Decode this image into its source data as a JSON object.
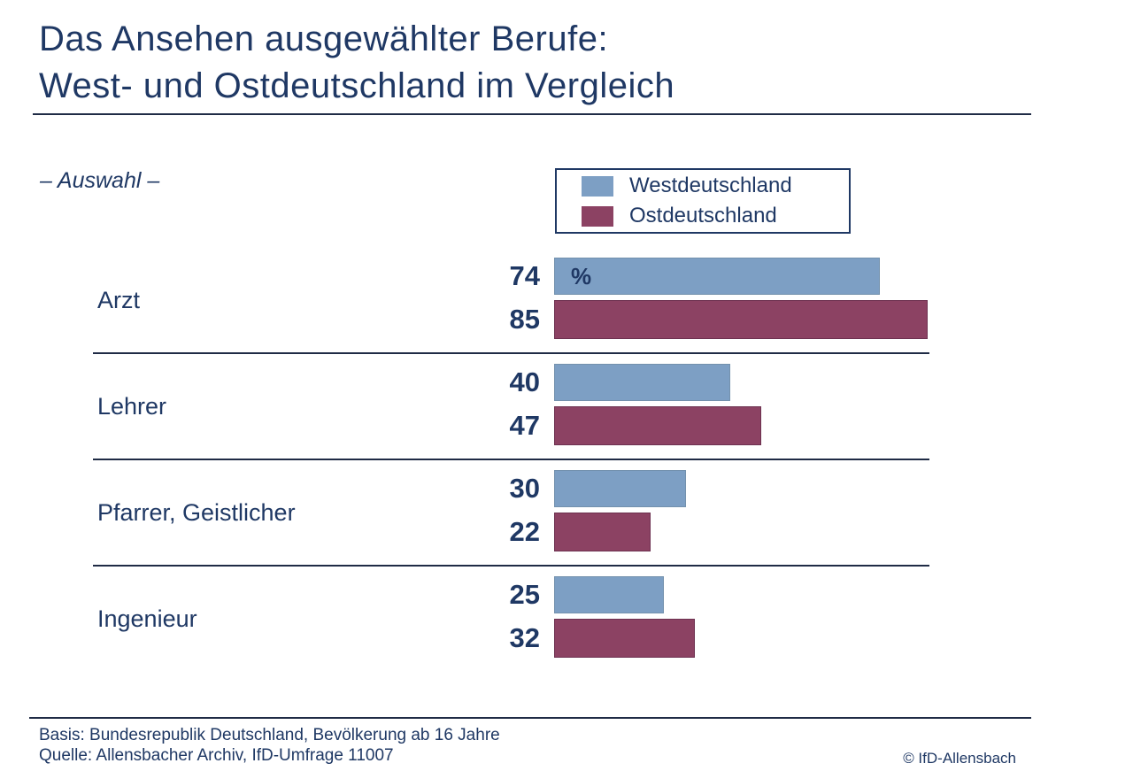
{
  "title": {
    "line1": "Das Ansehen ausgewählter Berufe:",
    "line2": "West- und Ostdeutschland im Vergleich"
  },
  "subtitle": "– Auswahl –",
  "unit_label": "%",
  "legend": {
    "items": [
      {
        "label": "Westdeutschland",
        "color": "#7d9fc4"
      },
      {
        "label": "Ostdeutschland",
        "color": "#8c4263"
      }
    ]
  },
  "chart_data": {
    "type": "bar",
    "orientation": "horizontal",
    "title": "Das Ansehen ausgewählter Berufe: West- und Ostdeutschland im Vergleich",
    "subtitle": "– Auswahl –",
    "unit": "%",
    "xlim": [
      0,
      100
    ],
    "grid": false,
    "legend_position": "top",
    "value_labels": true,
    "categories": [
      "Arzt",
      "Lehrer",
      "Pfarrer, Geistlicher",
      "Ingenieur"
    ],
    "series": [
      {
        "name": "Westdeutschland",
        "color": "#7d9fc4",
        "values": [
          74,
          40,
          30,
          25
        ]
      },
      {
        "name": "Ostdeutschland",
        "color": "#8c4263",
        "values": [
          85,
          47,
          22,
          32
        ]
      }
    ]
  },
  "footer": {
    "basis": "Basis: Bundesrepublik Deutschland, Bevölkerung ab 16 Jahre",
    "quelle": "Quelle: Allensbacher Archiv, IfD-Umfrage 11007",
    "copyright": "© IfD-Allensbach"
  },
  "colors": {
    "text": "#1f3864",
    "rule": "#1f2b45",
    "west": "#7d9fc4",
    "ost": "#8c4263",
    "background": "#ffffff"
  }
}
